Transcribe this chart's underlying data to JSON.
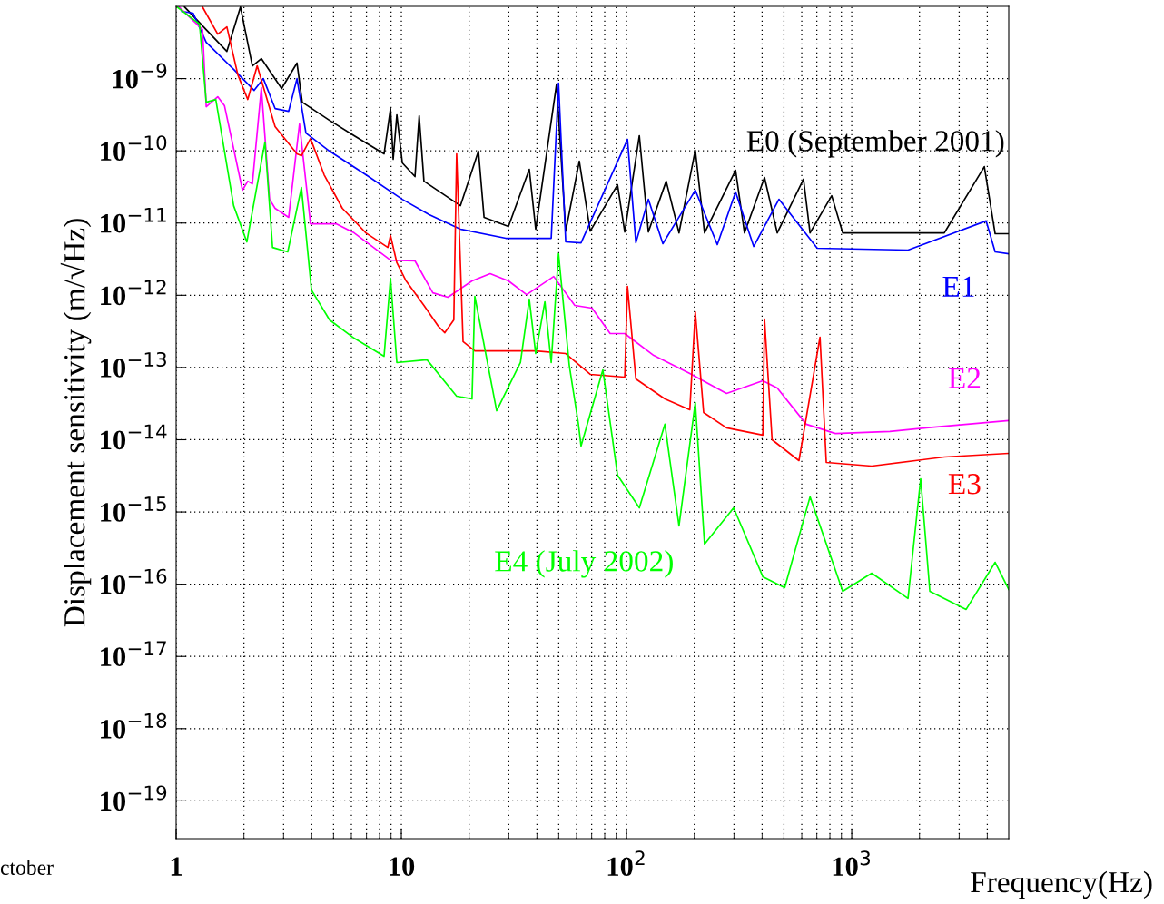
{
  "chart_data": {
    "type": "line",
    "ylabel": "Displacement sensitivity (m/√Hz)",
    "xlabel": "Frequency(Hz)",
    "log": "xy",
    "grid": true,
    "legend": false,
    "marker": "none",
    "line_style": "solid",
    "xlim": [
      1,
      4980
    ],
    "ylim": [
      3e-20,
      1e-08
    ],
    "xticks": [
      {
        "value": 1,
        "label": "1"
      },
      {
        "value": 10,
        "label": "10"
      },
      {
        "value": 100,
        "label": "10$^{2}$"
      },
      {
        "value": 1000,
        "label": "10$^{3}$"
      }
    ],
    "yticks": [
      {
        "value": 1e-09,
        "label": "10$^{−9}$"
      },
      {
        "value": 1e-10,
        "label": "10$^{−10}$"
      },
      {
        "value": 1e-11,
        "label": "10$^{−11}$"
      },
      {
        "value": 1e-12,
        "label": "10$^{−12}$"
      },
      {
        "value": 1e-13,
        "label": "10$^{−13}$"
      },
      {
        "value": 1e-14,
        "label": "10$^{−14}$"
      },
      {
        "value": 1e-15,
        "label": "10$^{−15}$"
      },
      {
        "value": 1e-16,
        "label": "10$^{−16}$"
      },
      {
        "value": 1e-17,
        "label": "10$^{−17}$"
      },
      {
        "value": 1e-18,
        "label": "10$^{−18}$"
      },
      {
        "value": 1e-19,
        "label": "10$^{−19}$"
      }
    ],
    "annotations": [
      "ctober"
    ],
    "series": [
      {
        "name": "E0 (September 2001)",
        "color": "#000000",
        "x": [
          1.09,
          1.68,
          1.93,
          2.18,
          2.39,
          2.94,
          3.44,
          3.63,
          4.8,
          6.17,
          8.38,
          8.95,
          9.2,
          9.55,
          10.1,
          11.5,
          12.0,
          12.6,
          18.3,
          22.0,
          23.3,
          29.9,
          37.0,
          39.5,
          48.9,
          53.7,
          61.7,
          69.0,
          91.2,
          98.2,
          114,
          125,
          150,
          171,
          202,
          222,
          305,
          334,
          410,
          467,
          611,
          653,
          815,
          912,
          2577,
          3880,
          4335,
          4980
        ],
        "values": [
          9.8e-09,
          2.38e-09,
          9.8e-09,
          1.5e-09,
          1.89e-09,
          7.28e-10,
          1.64e-09,
          4.71e-10,
          2.64e-10,
          1.62e-10,
          9.06e-11,
          3.85e-10,
          7.62e-11,
          3.14e-10,
          6.79e-11,
          4.4e-11,
          3.05e-10,
          3.8e-11,
          1.74e-11,
          9.89e-11,
          1.2e-11,
          8.95e-12,
          5.55e-11,
          8.22e-12,
          8.41e-10,
          7.75e-12,
          7.19e-11,
          7.75e-12,
          3.39e-11,
          7.53e-12,
          1.62e-10,
          7.53e-12,
          3.8e-11,
          7.31e-12,
          1.02e-10,
          7.31e-12,
          5.38e-11,
          7.31e-12,
          4.28e-11,
          7.31e-12,
          4.04e-11,
          7.31e-12,
          2.39e-11,
          7.31e-12,
          7.31e-12,
          6.04e-11,
          7.11e-12,
          7.11e-12
        ]
      },
      {
        "name": "E1",
        "color": "#0000ff",
        "x": [
          1.06,
          1.19,
          1.36,
          1.8,
          2.22,
          2.44,
          2.75,
          3.16,
          3.44,
          3.77,
          4.8,
          6.96,
          10.1,
          13.3,
          18.3,
          29.1,
          46.3,
          49.9,
          53.7,
          62.8,
          101,
          110,
          125,
          145,
          202,
          253,
          305,
          367,
          475,
          703,
          1778,
          3953,
          4335,
          4980
        ],
        "values": [
          8.51e-09,
          8.04e-09,
          3.18e-09,
          1.34e-09,
          6.87e-10,
          1e-09,
          3.85e-10,
          3.53e-10,
          1e-09,
          1.76e-10,
          9.89e-11,
          4.66e-11,
          2.13e-11,
          1.31e-11,
          8.22e-12,
          6.15e-12,
          6.15e-12,
          8.65e-10,
          5.48e-12,
          5.32e-12,
          1.44e-10,
          5.32e-12,
          2.13e-11,
          5.18e-12,
          2.85e-11,
          5.02e-12,
          2.69e-11,
          4.74e-12,
          2.13e-11,
          4.48e-12,
          4.23e-12,
          1.07e-11,
          3.99e-12,
          3.76e-12
        ]
      },
      {
        "name": "E2",
        "color": "#ff00ff",
        "x": [
          1.03,
          1.31,
          1.36,
          1.53,
          1.64,
          1.97,
          2.08,
          2.18,
          2.39,
          2.6,
          2.75,
          3.16,
          3.53,
          3.95,
          5.13,
          6.17,
          8.95,
          11.5,
          13.8,
          16.1,
          20.6,
          24.8,
          29.9,
          36.0,
          47.5,
          58.9,
          70.3,
          84.6,
          98.2,
          132,
          191,
          278,
          403,
          467,
          628,
          846,
          1476,
          2142,
          4980
        ],
        "values": [
          9.8e-09,
          4.76e-09,
          4.08e-10,
          5.61e-10,
          4.2e-10,
          2.85e-11,
          3.8e-11,
          3.49e-11,
          7.48e-10,
          2.13e-11,
          1.6e-11,
          1.2e-11,
          2.36e-10,
          9.77e-12,
          9.77e-12,
          7.31e-12,
          3.07e-12,
          2.99e-12,
          1.08e-12,
          9.38e-13,
          1.58e-12,
          1.99e-12,
          1.58e-12,
          1.02e-12,
          1.82e-12,
          7.23e-13,
          6.64e-13,
          2.95e-13,
          2.95e-13,
          1.47e-13,
          8.26e-14,
          4.38e-14,
          6.56e-14,
          5.2e-14,
          1.64e-14,
          1.22e-14,
          1.3e-14,
          1.46e-14,
          1.84e-14
        ]
      },
      {
        "name": "E3",
        "color": "#ff0000",
        "x": [
          1.31,
          1.53,
          1.68,
          1.88,
          2.08,
          2.29,
          2.75,
          3.44,
          3.6,
          3.95,
          4.54,
          5.47,
          6.96,
          8.71,
          8.95,
          9.55,
          10.5,
          12.6,
          14.6,
          15.6,
          17.1,
          17.6,
          18.8,
          21.2,
          39.5,
          53.7,
          69.0,
          98.2,
          101,
          110,
          148,
          191,
          202,
          220,
          278,
          403,
          410,
          443,
          583,
          723,
          771,
          1227,
          2577,
          4980
        ],
        "values": [
          9.8e-09,
          4.13e-09,
          5.2e-09,
          1.12e-09,
          5.14e-10,
          1.5e-09,
          2.16e-10,
          9.06e-11,
          8.55e-11,
          1.48e-10,
          4.66e-11,
          1.6e-11,
          7.31e-12,
          4.6e-12,
          6.71e-12,
          2.82e-12,
          1.58e-12,
          7.23e-13,
          3.72e-13,
          3.03e-13,
          4.55e-13,
          9.06e-11,
          2.28e-13,
          1.7e-13,
          1.7e-13,
          1.56e-13,
          8.03e-14,
          7.36e-14,
          1.33e-12,
          6.95e-14,
          3.67e-14,
          2.6e-14,
          5.9e-13,
          2.38e-14,
          1.46e-14,
          1.16e-14,
          4.69e-13,
          1e-14,
          5.14e-15,
          2.63e-13,
          4.85e-15,
          4.32e-15,
          5.77e-15,
          6.48e-15
        ]
      },
      {
        "name": "E4 (July 2002)",
        "color": "#00ff00",
        "x": [
          1.01,
          1.27,
          1.36,
          1.5,
          1.8,
          2.06,
          2.48,
          2.68,
          3.13,
          3.6,
          3.99,
          4.8,
          6.17,
          8.38,
          8.95,
          9.55,
          13.0,
          17.6,
          20.6,
          21.2,
          26.5,
          33.8,
          37.0,
          39.5,
          43.4,
          46.3,
          49.9,
          55.7,
          61.1,
          62.8,
          78.5,
          91.2,
          114,
          148,
          171,
          202,
          222,
          299,
          403,
          504,
          653,
          912,
          1227,
          1778,
          2024,
          2223,
          3222,
          4335,
          4980
        ],
        "values": [
          9.8e-09,
          5.68e-09,
          4.71e-10,
          5.14e-10,
          1.74e-11,
          5.48e-12,
          1.32e-10,
          4.6e-12,
          3.99e-12,
          3.1e-11,
          1.18e-12,
          4.55e-13,
          2.55e-13,
          1.43e-13,
          1.72e-12,
          1.17e-13,
          1.28e-13,
          4.01e-14,
          3.67e-14,
          9.66e-13,
          2.52e-14,
          1.17e-13,
          8.85e-13,
          1.56e-13,
          8.13e-13,
          1.17e-13,
          3.76e-12,
          1.07e-13,
          1.68e-14,
          8.17e-15,
          9.27e-14,
          3.24e-15,
          1.14e-15,
          1.64e-14,
          6.41e-16,
          3.27e-14,
          3.59e-16,
          1.14e-15,
          1.27e-16,
          8.95e-17,
          1.62e-15,
          7.98e-17,
          1.42e-16,
          6.34e-17,
          2.88e-15,
          7.98e-17,
          4.48e-17,
          2.01e-16,
          8.45e-17
        ]
      }
    ]
  }
}
